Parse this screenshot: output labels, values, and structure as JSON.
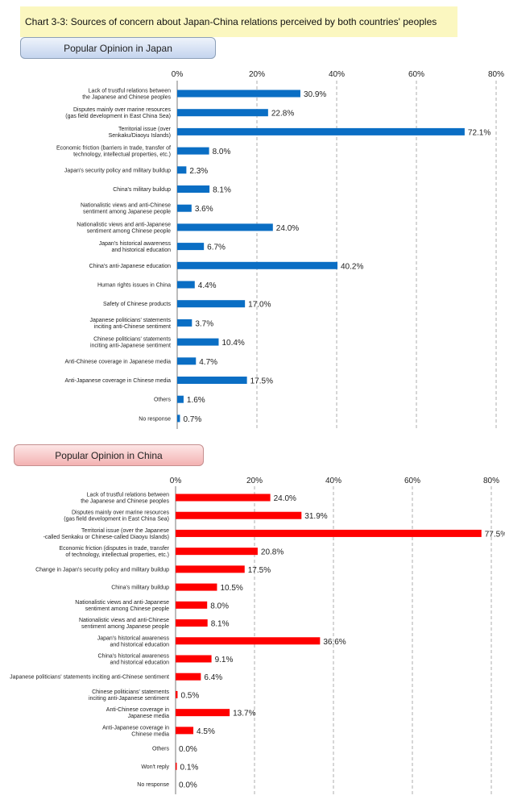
{
  "title": "Chart 3-3: Sources of concern about Japan-China relations perceived by both countries' peoples",
  "chart_data": [
    {
      "type": "bar",
      "orientation": "horizontal",
      "section_label": "Popular Opinion in Japan",
      "color": "#0a6ec4",
      "xlim": [
        0,
        80
      ],
      "ticks": [
        "0%",
        "20%",
        "40%",
        "60%",
        "80%"
      ],
      "categories": [
        [
          "Lack of trustful relations between",
          "the Japanese and Chinese peoples"
        ],
        [
          "Disputes mainly over marine resources",
          "(gas field development in East China Sea)"
        ],
        [
          "Territorial issue (over",
          "Senkaku/Diaoyu Islands)"
        ],
        [
          "Economic friction (barriers in trade, transfer of",
          "technology, intellectual properties, etc.)"
        ],
        [
          "Japan's security policy and military buildup"
        ],
        [
          "China's military buildup"
        ],
        [
          "Nationalistic views and anti-Chinese",
          "sentiment among Japanese people"
        ],
        [
          "Nationalistic views and anti-Japanese",
          "sentiment among Chinese people"
        ],
        [
          "Japan's historical awareness",
          "and historical education"
        ],
        [
          "China's anti-Japanese education"
        ],
        [
          "Human rights issues in China"
        ],
        [
          "Safety of Chinese products"
        ],
        [
          "Japanese politicians' statements",
          "inciting anti-Chinese sentiment"
        ],
        [
          "Chinese politicians' statements",
          "inciting anti-Japanese sentiment"
        ],
        [
          "Anti-Chinese coverage in Japanese media"
        ],
        [
          "Anti-Japanese coverage in Chinese media"
        ],
        [
          "Others"
        ],
        [
          "No response"
        ]
      ],
      "values": [
        30.9,
        22.8,
        72.1,
        8.0,
        2.3,
        8.1,
        3.6,
        24.0,
        6.7,
        40.2,
        4.4,
        17.0,
        3.7,
        10.4,
        4.7,
        17.5,
        1.6,
        0.7
      ],
      "labels": [
        "30.9%",
        "22.8%",
        "72.1%",
        "8.0%",
        "2.3%",
        "8.1%",
        "3.6%",
        "24.0%",
        "6.7%",
        "40.2%",
        "4.4%",
        "17.0%",
        "3.7%",
        "10.4%",
        "4.7%",
        "17.5%",
        "1.6%",
        "0.7%"
      ]
    },
    {
      "type": "bar",
      "orientation": "horizontal",
      "section_label": "Popular Opinion in China",
      "color": "#ff0000",
      "xlim": [
        0,
        80
      ],
      "ticks": [
        "0%",
        "20%",
        "40%",
        "60%",
        "80%"
      ],
      "categories": [
        [
          "Lack of trustful relations between",
          "the Japanese and Chinese peoples"
        ],
        [
          "Disputes mainly over marine resources",
          "(gas field development in East China Sea)"
        ],
        [
          "Territorial issue (over the Japanese",
          "-called Senkaku or Chinese-called Diaoyu Islands)"
        ],
        [
          "Economic friction (disputes in trade, transfer",
          "of technology, intellectual properties, etc.)"
        ],
        [
          "Change in Japan's security policy and military buildup"
        ],
        [
          "China's military buildup"
        ],
        [
          "Nationalistic views and anti-Japanese",
          "sentiment among Chinese people"
        ],
        [
          "Nationalistic views and anti-Chinese",
          "sentiment among Japanese people"
        ],
        [
          "Japan's historical awareness",
          "and historical education"
        ],
        [
          "China's historical awareness",
          "and historical education"
        ],
        [
          "Japanese politicians' statements inciting anti-Chinese sentiment"
        ],
        [
          "Chinese politicians' statements",
          "inciting anti-Japanese sentiment"
        ],
        [
          "Anti-Chinese coverage in",
          "Japanese media"
        ],
        [
          "Anti-Japanese coverage in",
          "Chinese media"
        ],
        [
          "Others"
        ],
        [
          "Won't reply"
        ],
        [
          "No response"
        ]
      ],
      "values": [
        24.0,
        31.9,
        77.5,
        20.8,
        17.5,
        10.5,
        8.0,
        8.1,
        36.6,
        9.1,
        6.4,
        0.5,
        13.7,
        4.5,
        0.0,
        0.1,
        0.0
      ],
      "labels": [
        "24.0%",
        "31.9%",
        "77.5%",
        "20.8%",
        "17.5%",
        "10.5%",
        "8.0%",
        "8.1%",
        "36.6%",
        "9.1%",
        "6.4%",
        "0.5%",
        "13.7%",
        "4.5%",
        "0.0%",
        "0.1%",
        "0.0%"
      ]
    }
  ]
}
